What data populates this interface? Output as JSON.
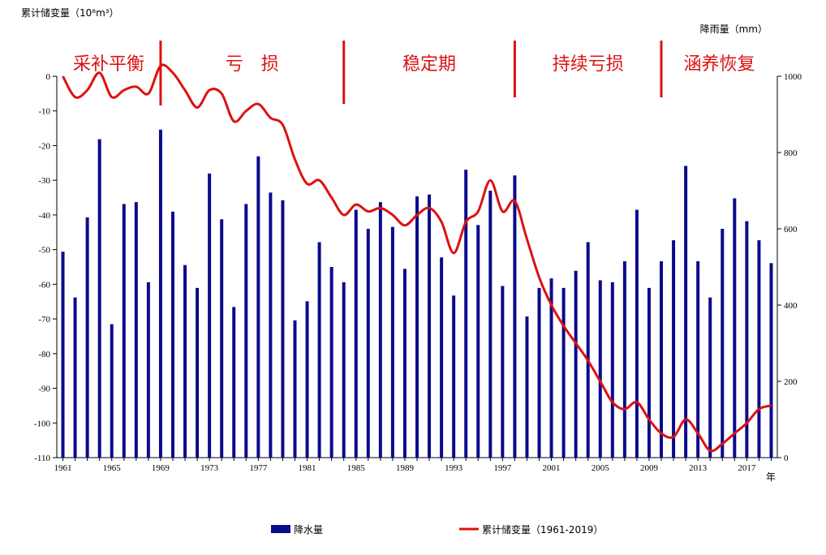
{
  "chart_data": {
    "type": "bar+line",
    "left_axis_title": "累计储变量（10⁸m³）",
    "right_axis_title": "降雨量（mm）",
    "x_unit_label": "年",
    "left_ylim": [
      -110,
      0
    ],
    "left_ticks": [
      "0",
      "-10",
      "-20",
      "-30",
      "-40",
      "-50",
      "-60",
      "-70",
      "-80",
      "-90",
      "-100",
      "-110"
    ],
    "right_ylim": [
      0,
      1000
    ],
    "right_ticks": [
      "0",
      "200",
      "400",
      "600",
      "800",
      "1000"
    ],
    "x_tick_labels": [
      "1961",
      "1965",
      "1969",
      "1973",
      "1977",
      "1981",
      "1985",
      "1989",
      "1993",
      "1997",
      "2001",
      "2005",
      "2009",
      "2013",
      "2017"
    ],
    "years": [
      1961,
      1962,
      1963,
      1964,
      1965,
      1966,
      1967,
      1968,
      1969,
      1970,
      1971,
      1972,
      1973,
      1974,
      1975,
      1976,
      1977,
      1978,
      1979,
      1980,
      1981,
      1982,
      1983,
      1984,
      1985,
      1986,
      1987,
      1988,
      1989,
      1990,
      1991,
      1992,
      1993,
      1994,
      1995,
      1996,
      1997,
      1998,
      1999,
      2000,
      2001,
      2002,
      2003,
      2004,
      2005,
      2006,
      2007,
      2008,
      2009,
      2010,
      2011,
      2012,
      2013,
      2014,
      2015,
      2016,
      2017,
      2018,
      2019
    ],
    "series": [
      {
        "name": "降水量",
        "axis": "right",
        "color": "#0a0a8c",
        "values": [
          540,
          420,
          630,
          835,
          350,
          665,
          670,
          460,
          860,
          645,
          505,
          445,
          745,
          625,
          395,
          665,
          790,
          695,
          675,
          360,
          410,
          565,
          500,
          460,
          650,
          600,
          670,
          605,
          495,
          685,
          690,
          525,
          425,
          755,
          610,
          700,
          450,
          740,
          370,
          445,
          470,
          445,
          490,
          565,
          465,
          460,
          515,
          650,
          445,
          515,
          570,
          765,
          515,
          420,
          600,
          680,
          620,
          570,
          510
        ]
      },
      {
        "name": "累计储变量（1961-2019）",
        "axis": "left",
        "color": "#dd1111",
        "values": [
          0,
          -6,
          -4,
          1,
          -6,
          -4,
          -3,
          -5,
          3,
          1,
          -4,
          -9,
          -4,
          -5,
          -13,
          -10,
          -8,
          -12,
          -14,
          -24,
          -31,
          -30,
          -35,
          -40,
          -37,
          -39,
          -38,
          -40,
          -43,
          -40,
          -38,
          -42,
          -51,
          -42,
          -39,
          -30,
          -39,
          -36,
          -47,
          -58,
          -66,
          -72,
          -77,
          -82,
          -88,
          -94,
          -96,
          -94,
          -99,
          -103,
          -104,
          -99,
          -103,
          -108,
          -106,
          -103,
          -100,
          -96,
          -95
        ]
      }
    ],
    "phases": [
      {
        "label": "采补平衡",
        "from": 1960.5,
        "to": 1969.0
      },
      {
        "label": "亏　损",
        "from": 1969.0,
        "to": 1984.0
      },
      {
        "label": "稳定期",
        "from": 1984.0,
        "to": 1998.0
      },
      {
        "label": "持续亏损",
        "from": 1998.0,
        "to": 2010.0
      },
      {
        "label": "涵养恢复",
        "from": 2010.0,
        "to": 2019.5
      }
    ],
    "phase_color": "#dd1111",
    "legend_placement": "bottom",
    "grid": false
  }
}
